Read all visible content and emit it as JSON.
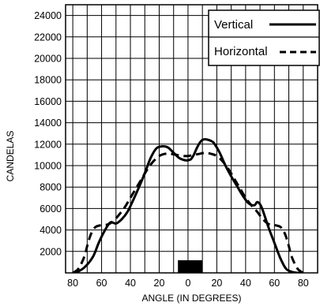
{
  "chart_data": {
    "type": "line",
    "xlabel": "ANGLE (IN DEGREES)",
    "ylabel": "CANDELAS",
    "x_tick_labels": [
      "80",
      "60",
      "40",
      "20",
      "0",
      "20",
      "40",
      "60",
      "80"
    ],
    "y_ticks": [
      2000,
      4000,
      6000,
      8000,
      10000,
      12000,
      14000,
      16000,
      18000,
      20000,
      22000,
      24000
    ],
    "y_tick_labels": [
      "2000",
      "4000",
      "6000",
      "8000",
      "10000",
      "12000",
      "14000",
      "16000",
      "18000",
      "20000",
      "22000",
      "24000"
    ],
    "xlim": [
      -85,
      90
    ],
    "ylim": [
      0,
      25000
    ],
    "grid": true,
    "legend_position": "top-right",
    "series": [
      {
        "name": "Vertical",
        "style": "solid",
        "color": "#000000",
        "x": [
          -78,
          -72,
          -66,
          -62,
          -58,
          -54,
          -50,
          -46,
          -42,
          -38,
          -34,
          -30,
          -26,
          -22,
          -18,
          -14,
          -10,
          -6,
          -2,
          0,
          2,
          4,
          6,
          8,
          10,
          12,
          14,
          16,
          18,
          22,
          26,
          30,
          34,
          38,
          42,
          46,
          48,
          50,
          52,
          56,
          60,
          64,
          68,
          72,
          76,
          78
        ],
        "y": [
          0,
          500,
          1500,
          2800,
          3900,
          4700,
          4600,
          5000,
          5700,
          6800,
          8000,
          9300,
          10700,
          11600,
          11800,
          11700,
          11200,
          10700,
          10500,
          10500,
          10600,
          11000,
          11600,
          12100,
          12400,
          12450,
          12400,
          12300,
          12100,
          11200,
          10000,
          9000,
          8100,
          7200,
          6500,
          6300,
          6600,
          6400,
          5800,
          4200,
          2800,
          1400,
          400,
          100,
          0,
          0
        ]
      },
      {
        "name": "Horizontal",
        "style": "dashed",
        "color": "#000000",
        "x": [
          -80,
          -76,
          -72,
          -70,
          -68,
          -66,
          -64,
          -62,
          -60,
          -56,
          -52,
          -48,
          -44,
          -40,
          -36,
          -32,
          -28,
          -24,
          -20,
          -16,
          -12,
          -8,
          -4,
          0,
          4,
          8,
          12,
          16,
          20,
          24,
          28,
          32,
          36,
          40,
          44,
          48,
          52,
          56,
          60,
          62,
          64,
          66,
          68,
          70,
          72,
          76,
          80
        ],
        "y": [
          0,
          400,
          1500,
          2500,
          3400,
          4000,
          4300,
          4400,
          4450,
          4500,
          4800,
          5400,
          6100,
          7000,
          7900,
          8800,
          9700,
          10400,
          10900,
          11100,
          11100,
          11000,
          10900,
          10900,
          11000,
          11100,
          11200,
          11100,
          10900,
          10400,
          9700,
          8800,
          7900,
          7000,
          6300,
          5700,
          5000,
          4550,
          4450,
          4400,
          4300,
          4000,
          3400,
          2500,
          1500,
          400,
          0
        ]
      }
    ]
  }
}
